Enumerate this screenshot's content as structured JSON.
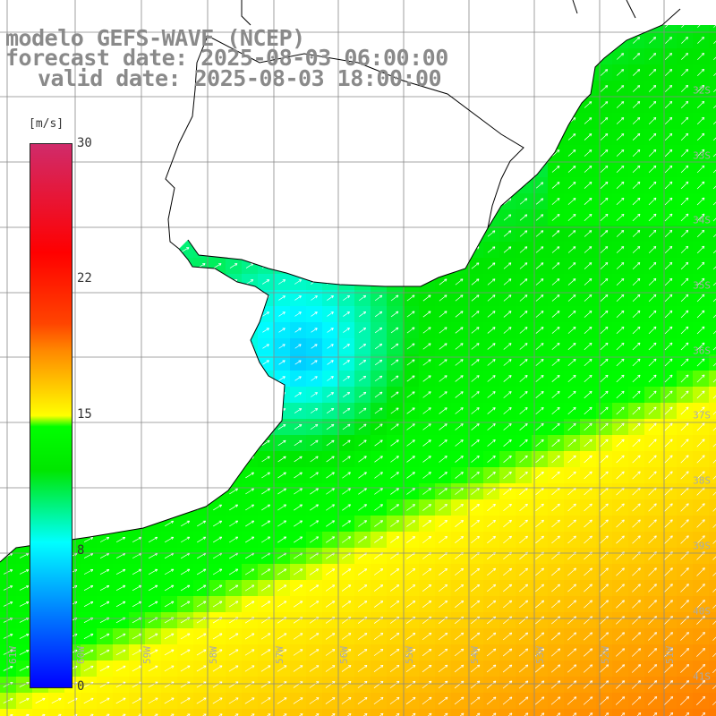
{
  "title": {
    "line1": "modelo GEFS-WAVE (NCEP)",
    "line2": "forecast date: 2025-08-03 06:00:00",
    "line3": "valid date: 2025-08-03 18:00:00"
  },
  "colorbar": {
    "unit": "[m/s]",
    "min": 0,
    "max": 30,
    "ticks": [
      "0",
      "8",
      "15",
      "22",
      "30"
    ]
  },
  "axes": {
    "lat_labels": [
      "32S",
      "33S",
      "34S",
      "35S",
      "36S",
      "37S",
      "38S",
      "39S",
      "40S",
      "41S"
    ],
    "lon_labels": [
      "61W",
      "60W",
      "59W",
      "58W",
      "57W",
      "56W",
      "55W",
      "54W",
      "53W",
      "52W",
      "51W"
    ]
  },
  "colors": {
    "land": "#ffffff",
    "coast": "#000000",
    "grid": "#888888",
    "arrow": "#ffffff"
  }
}
